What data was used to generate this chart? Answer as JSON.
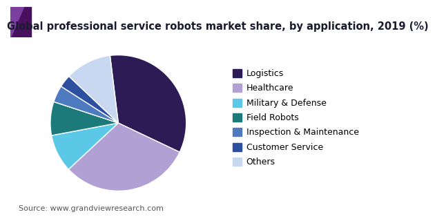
{
  "title": "Global professional service robots market share, by application, 2019 (%)",
  "source": "Source: www.grandviewresearch.com",
  "labels": [
    "Logistics",
    "Healthcare",
    "Military & Defense",
    "Field Robots",
    "Inspection & Maintenance",
    "Customer Service",
    "Others"
  ],
  "values": [
    34,
    31,
    9,
    8,
    4,
    3,
    11
  ],
  "colors": [
    "#2d1b55",
    "#b0a0d4",
    "#5bc8e8",
    "#1d7a7a",
    "#4e7bbf",
    "#2d4fa0",
    "#c8d8f0"
  ],
  "startangle": 97,
  "title_fontsize": 10.5,
  "legend_fontsize": 9,
  "source_fontsize": 8,
  "bg_color": "#ffffff",
  "header_line_color": "#7b2d8b",
  "header_triangle_color1": "#4a1060",
  "header_triangle_color2": "#7b3fa0"
}
